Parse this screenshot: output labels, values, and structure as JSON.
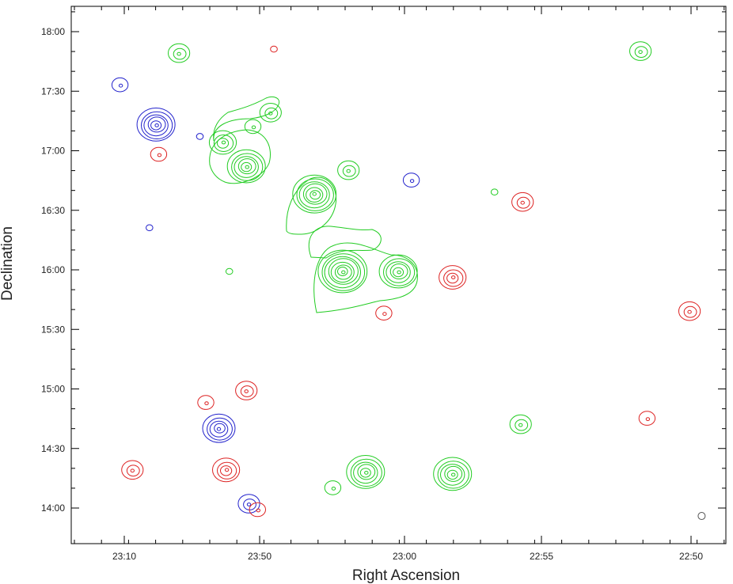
{
  "chart_data": {
    "type": "contour",
    "xlabel": "Right Ascension",
    "ylabel": "Declination",
    "x_tick_labels": [
      "23:10",
      "23:50",
      "23:00",
      "22:55",
      "22:50"
    ],
    "y_tick_labels": [
      "18:00",
      "17:30",
      "17:00",
      "16:30",
      "16:00",
      "15:30",
      "15:00",
      "14:30",
      "14:00"
    ],
    "grid": false,
    "colors": {
      "green": "#22cc22",
      "red": "#dd2222",
      "blue": "#2222cc",
      "frame": "#000000",
      "beam": "#555555"
    },
    "sources": [
      {
        "color": "green",
        "ra_frac": 0.165,
        "dec": "17:49",
        "rings": 3
      },
      {
        "color": "red",
        "ra_frac": 0.31,
        "dec": "17:51",
        "rings": 1
      },
      {
        "color": "green",
        "ra_frac": 0.87,
        "dec": "17:50",
        "rings": 3
      },
      {
        "color": "blue",
        "ra_frac": 0.075,
        "dec": "17:33",
        "rings": 2
      },
      {
        "color": "blue",
        "ra_frac": 0.13,
        "dec": "17:13",
        "rings": 6
      },
      {
        "color": "green",
        "ra_frac": 0.232,
        "dec": "17:04",
        "rings": 4
      },
      {
        "color": "green",
        "ra_frac": 0.278,
        "dec": "17:12",
        "rings": 2
      },
      {
        "color": "green",
        "ra_frac": 0.305,
        "dec": "17:19",
        "rings": 3
      },
      {
        "color": "blue",
        "ra_frac": 0.197,
        "dec": "17:07",
        "rings": 1
      },
      {
        "color": "red",
        "ra_frac": 0.134,
        "dec": "16:58",
        "rings": 2
      },
      {
        "color": "green",
        "ra_frac": 0.268,
        "dec": "16:52",
        "rings": 6
      },
      {
        "color": "green",
        "ra_frac": 0.372,
        "dec": "16:38",
        "rings": 7
      },
      {
        "color": "green",
        "ra_frac": 0.424,
        "dec": "16:50",
        "rings": 3
      },
      {
        "color": "blue",
        "ra_frac": 0.52,
        "dec": "16:45",
        "rings": 2
      },
      {
        "color": "green",
        "ra_frac": 0.647,
        "dec": "16:39",
        "rings": 1
      },
      {
        "color": "red",
        "ra_frac": 0.69,
        "dec": "16:34",
        "rings": 3
      },
      {
        "color": "blue",
        "ra_frac": 0.12,
        "dec": "16:21",
        "rings": 1
      },
      {
        "color": "green",
        "ra_frac": 0.415,
        "dec": "15:59",
        "rings": 8
      },
      {
        "color": "green",
        "ra_frac": 0.5,
        "dec": "15:59",
        "rings": 6
      },
      {
        "color": "red",
        "ra_frac": 0.583,
        "dec": "15:56",
        "rings": 4
      },
      {
        "color": "green",
        "ra_frac": 0.242,
        "dec": "15:59",
        "rings": 1
      },
      {
        "color": "red",
        "ra_frac": 0.478,
        "dec": "15:38",
        "rings": 2
      },
      {
        "color": "red",
        "ra_frac": 0.945,
        "dec": "15:39",
        "rings": 3
      },
      {
        "color": "red",
        "ra_frac": 0.268,
        "dec": "14:59",
        "rings": 3
      },
      {
        "color": "red",
        "ra_frac": 0.206,
        "dec": "14:53",
        "rings": 2
      },
      {
        "color": "blue",
        "ra_frac": 0.226,
        "dec": "14:40",
        "rings": 5
      },
      {
        "color": "green",
        "ra_frac": 0.687,
        "dec": "14:42",
        "rings": 3
      },
      {
        "color": "red",
        "ra_frac": 0.88,
        "dec": "14:45",
        "rings": 2
      },
      {
        "color": "red",
        "ra_frac": 0.094,
        "dec": "14:19",
        "rings": 3
      },
      {
        "color": "red",
        "ra_frac": 0.237,
        "dec": "14:19",
        "rings": 4
      },
      {
        "color": "green",
        "ra_frac": 0.45,
        "dec": "14:18",
        "rings": 6
      },
      {
        "color": "green",
        "ra_frac": 0.4,
        "dec": "14:10",
        "rings": 2
      },
      {
        "color": "green",
        "ra_frac": 0.583,
        "dec": "14:17",
        "rings": 6
      },
      {
        "color": "blue",
        "ra_frac": 0.272,
        "dec": "14:02",
        "rings": 3
      },
      {
        "color": "red",
        "ra_frac": 0.285,
        "dec": "13:59",
        "rings": 2
      }
    ],
    "beam": {
      "ra_frac": 0.963,
      "dec": "13:56"
    }
  }
}
